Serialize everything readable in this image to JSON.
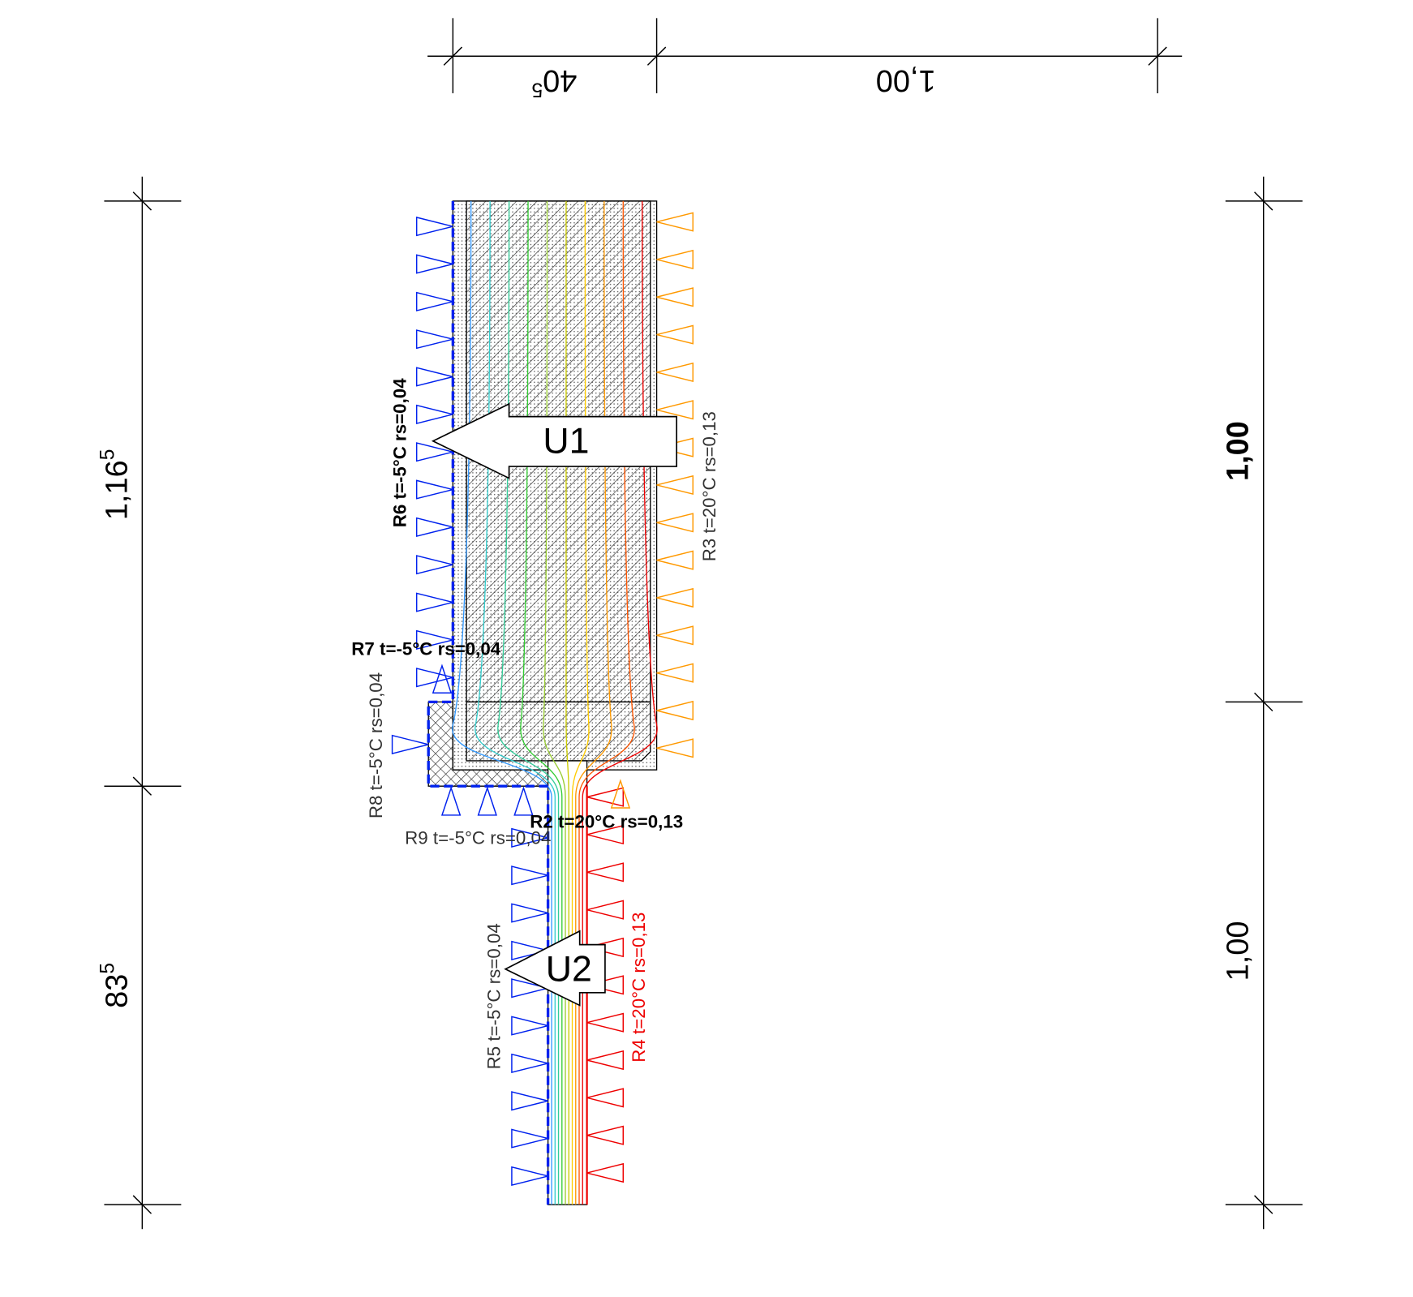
{
  "dimensions": {
    "top": [
      {
        "main": "40",
        "sup": "5"
      },
      {
        "main": "1,00"
      }
    ],
    "left": [
      {
        "main": "1,16",
        "sup": "5"
      },
      {
        "main": "83",
        "sup": "5"
      }
    ],
    "right": [
      {
        "main": "1,00"
      },
      {
        "main": "1,00"
      }
    ]
  },
  "boundaries": {
    "r6": "R6 t=-5°C rs=0,04",
    "r7": "R7 t=-5°C rs=0,04",
    "r8": "R8 t=-5°C rs=0,04",
    "r9": "R9 t=-5°C rs=0,04",
    "r2": "R2 t=20°C rs=0,13",
    "r3": "R3 t=20°C rs=0,13",
    "r5": "R5 t=-5°C rs=0,04",
    "r4": "R4 t=20°C rs=0,13"
  },
  "flows": {
    "u1": "U1",
    "u2": "U2"
  }
}
